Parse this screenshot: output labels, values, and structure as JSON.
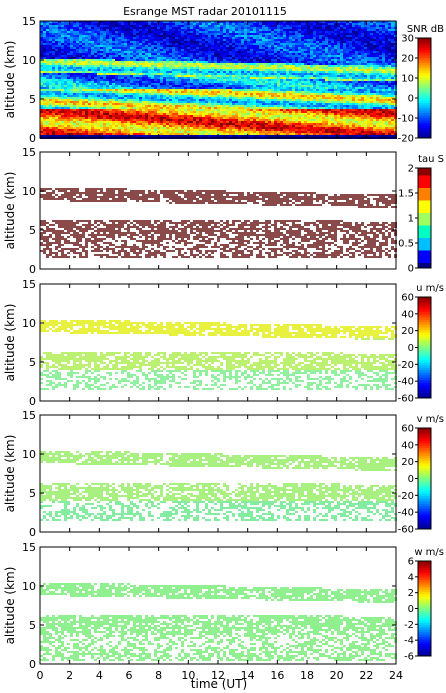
{
  "title": "Esrange MST radar 20101115",
  "xlabel": "time (UT)",
  "colors": {
    "jet": [
      "#00008f",
      "#0000ff",
      "#0080ff",
      "#00ffff",
      "#80ff80",
      "#ffff00",
      "#ff8000",
      "#ff0000",
      "#800000"
    ],
    "tau": [
      "#000080",
      "#0000ff",
      "#00bfff",
      "#00ffc0",
      "#a0ff60",
      "#ffff00",
      "#ff8000",
      "#ff0000",
      "#8b0000"
    ],
    "tau_echo": "#8b4a4a",
    "u_echo_high": "#e8f040",
    "u_echo_low": "#90f0a0",
    "v_echo": "#a8f080",
    "w_echo": "#90f090"
  },
  "chart_data": [
    {
      "type": "heatmap",
      "id": "snr",
      "xlim": [
        0,
        24
      ],
      "ylim": [
        0,
        15
      ],
      "xticks": [
        0,
        2,
        4,
        6,
        8,
        10,
        12,
        14,
        16,
        18,
        20,
        22,
        24
      ],
      "yticks": [
        0,
        5,
        10,
        15
      ],
      "ylabel": "altitude (km)",
      "colorbar": {
        "label": "SNR dB",
        "ticks": [
          30,
          20,
          10,
          0,
          -10,
          -20
        ],
        "range": [
          -20,
          30
        ]
      },
      "features": [
        {
          "alt_range": [
            0.5,
            3.5
          ],
          "value_range": [
            20,
            28
          ]
        },
        {
          "alt_range": [
            3.5,
            6
          ],
          "value_range": [
            5,
            15
          ]
        },
        {
          "alt_range": [
            8.5,
            10
          ],
          "value_range": [
            0,
            10
          ]
        },
        {
          "alt_range": [
            10,
            15
          ],
          "value_range": [
            -15,
            -5
          ]
        }
      ]
    },
    {
      "type": "heatmap",
      "id": "tau",
      "xlim": [
        0,
        24
      ],
      "ylim": [
        0,
        15
      ],
      "xticks": [
        0,
        2,
        4,
        6,
        8,
        10,
        12,
        14,
        16,
        18,
        20,
        22,
        24
      ],
      "yticks": [
        0,
        5,
        10,
        15
      ],
      "ylabel": "altitude (km)",
      "colorbar": {
        "label": "tau S",
        "ticks": [
          2,
          1.5,
          1,
          0.5,
          0
        ],
        "range": [
          0,
          2
        ]
      },
      "features": [
        {
          "alt_range": [
            8.8,
            10.5
          ],
          "value": 2
        },
        {
          "alt_range": [
            3,
            6.5
          ],
          "value": 2
        },
        {
          "alt_range": [
            1.5,
            3
          ],
          "value": 2
        }
      ]
    },
    {
      "type": "heatmap",
      "id": "u",
      "xlim": [
        0,
        24
      ],
      "ylim": [
        0,
        15
      ],
      "xticks": [
        0,
        2,
        4,
        6,
        8,
        10,
        12,
        14,
        16,
        18,
        20,
        22,
        24
      ],
      "yticks": [
        0,
        5,
        10,
        15
      ],
      "ylabel": "altitude (km)",
      "colorbar": {
        "label": "u m/s",
        "ticks": [
          60,
          40,
          20,
          0,
          -20,
          -40,
          -60
        ],
        "range": [
          -60,
          60
        ]
      },
      "features": [
        {
          "alt_range": [
            8.8,
            10.5
          ],
          "value": 20
        },
        {
          "alt_range": [
            4,
            6.5
          ],
          "value": 10
        },
        {
          "alt_range": [
            2,
            4
          ],
          "value": -5
        }
      ]
    },
    {
      "type": "heatmap",
      "id": "v",
      "xlim": [
        0,
        24
      ],
      "ylim": [
        0,
        15
      ],
      "xticks": [
        0,
        2,
        4,
        6,
        8,
        10,
        12,
        14,
        16,
        18,
        20,
        22,
        24
      ],
      "yticks": [
        0,
        5,
        10,
        15
      ],
      "ylabel": "altitude (km)",
      "colorbar": {
        "label": "v m/s",
        "ticks": [
          60,
          40,
          20,
          0,
          -20,
          -40,
          -60
        ],
        "range": [
          -60,
          60
        ]
      },
      "features": [
        {
          "alt_range": [
            8.8,
            10.5
          ],
          "value": 5
        },
        {
          "alt_range": [
            4,
            6.5
          ],
          "value": 5
        },
        {
          "alt_range": [
            2,
            4
          ],
          "value": -5
        }
      ]
    },
    {
      "type": "heatmap",
      "id": "w",
      "xlim": [
        0,
        24
      ],
      "ylim": [
        0,
        15
      ],
      "xticks": [
        0,
        2,
        4,
        6,
        8,
        10,
        12,
        14,
        16,
        18,
        20,
        22,
        24
      ],
      "yticks": [
        0,
        5,
        10,
        15
      ],
      "ylabel": "altitude (km)",
      "colorbar": {
        "label": "w m/s",
        "ticks": [
          6,
          4,
          2,
          0,
          -2,
          -4,
          -6
        ],
        "range": [
          -6,
          6
        ]
      },
      "features": [
        {
          "alt_range": [
            8.8,
            10.5
          ],
          "value": 0
        },
        {
          "alt_range": [
            0.5,
            6.5
          ],
          "value": 0
        }
      ]
    }
  ]
}
